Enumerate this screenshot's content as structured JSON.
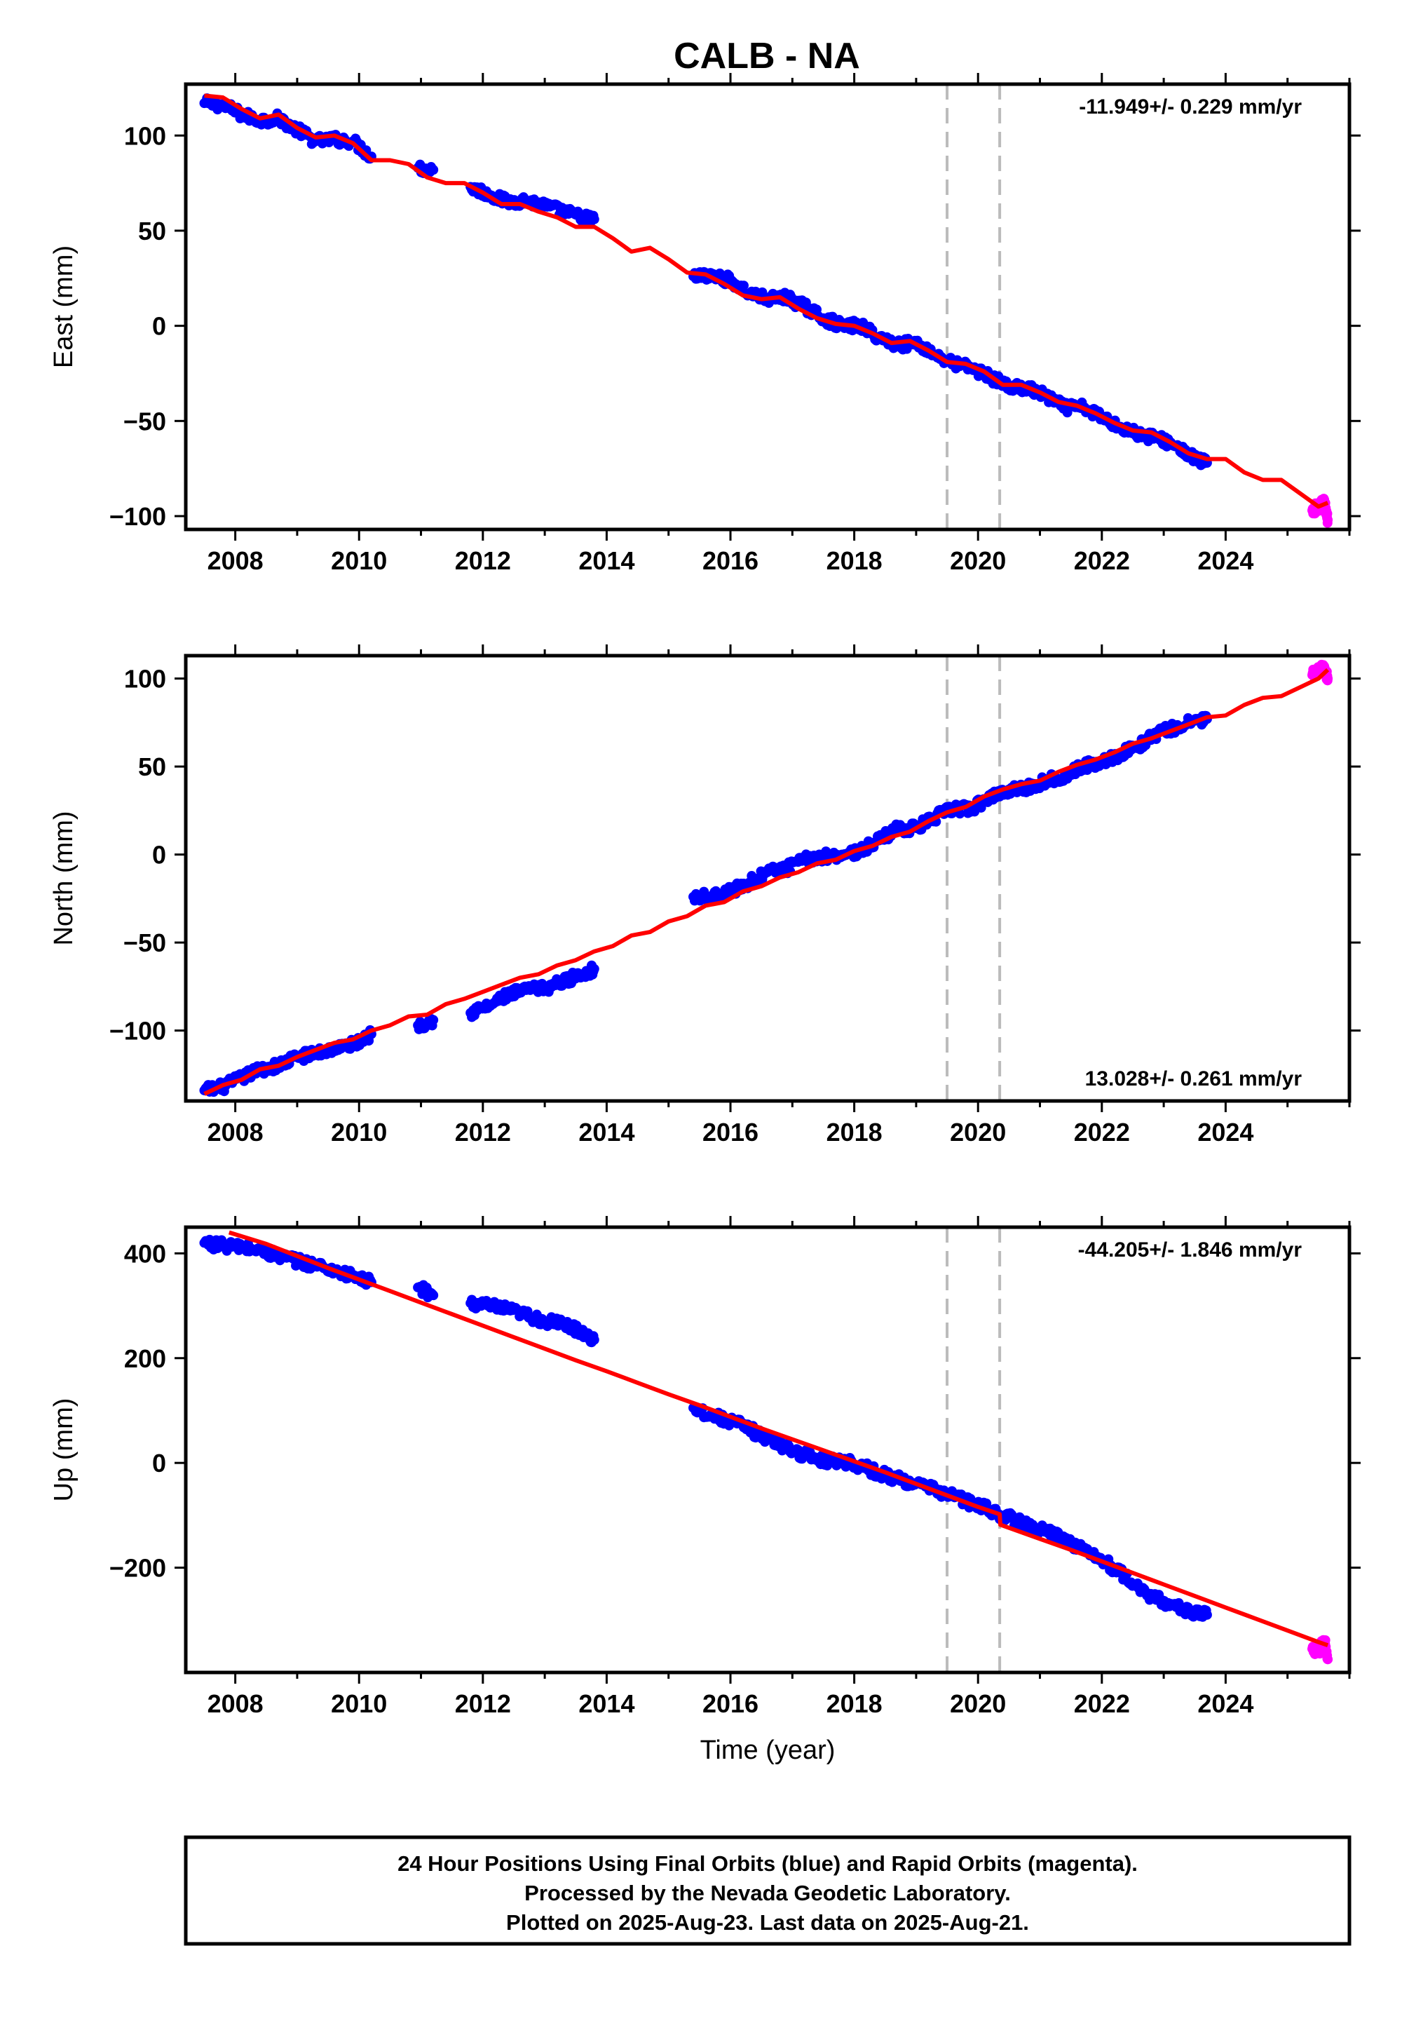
{
  "title": "CALB - NA",
  "colors": {
    "final_orbits": "#0000ff",
    "rapid_orbits": "#ff00ff",
    "model": "#ff0000",
    "event_lines": "#bbbbbb"
  },
  "notes": [
    "24 Hour Positions Using Final Orbits (blue) and Rapid Orbits (magenta).",
    "Processed by the Nevada Geodetic Laboratory.",
    "Plotted on 2025-Aug-23. Last data on 2025-Aug-21."
  ],
  "chart_data": [
    {
      "type": "scatter",
      "ylabel": "East (mm)",
      "xlabel": "",
      "rate_label": "-11.949+/- 0.229 mm/yr",
      "rate_position": "top-right",
      "xlim": [
        2007.2,
        2026.0
      ],
      "ylim": [
        -107,
        127
      ],
      "xticks": [
        2008,
        2010,
        2012,
        2014,
        2016,
        2018,
        2020,
        2022,
        2024
      ],
      "xtick_labels": [
        "2008",
        "2010",
        "2012",
        "2014",
        "2016",
        "2018",
        "2020",
        "2022",
        "2024"
      ],
      "yticks": [
        -100,
        -50,
        0,
        50,
        100
      ],
      "ytick_labels": [
        "−100",
        "−50",
        "0",
        "50",
        "100"
      ],
      "event_lines": [
        2019.5,
        2020.35
      ],
      "series": [
        {
          "role": "final_orbits",
          "kind": "points",
          "segments": [
            {
              "x": [
                2007.5,
                2007.8,
                2008.1,
                2008.4,
                2008.7,
                2009.0,
                2009.3,
                2009.6,
                2009.9,
                2010.2
              ],
              "y": [
                117,
                116,
                111,
                108,
                109,
                103,
                97,
                98,
                97,
                89
              ]
            },
            {
              "x": [
                2010.95,
                2011.2
              ],
              "y": [
                83,
                82
              ]
            },
            {
              "x": [
                2011.8,
                2012.1,
                2012.4,
                2012.7,
                2013.0,
                2013.3,
                2013.6,
                2013.8
              ],
              "y": [
                73,
                69,
                65,
                66,
                63,
                60,
                57,
                56
              ]
            },
            {
              "x": [
                2015.4,
                2015.7,
                2016.0,
                2016.3,
                2016.6,
                2016.9,
                2017.2,
                2017.5,
                2017.8,
                2018.1,
                2018.4,
                2018.7,
                2019.0,
                2019.3,
                2019.6,
                2019.9,
                2020.2,
                2020.5,
                2020.8,
                2021.1,
                2021.4,
                2021.7,
                2022.0,
                2022.3,
                2022.6,
                2022.9,
                2023.2,
                2023.5,
                2023.7
              ],
              "y": [
                26,
                26,
                24,
                17,
                14,
                15,
                10,
                4,
                0,
                0,
                -6,
                -10,
                -9,
                -15,
                -20,
                -22,
                -27,
                -32,
                -33,
                -37,
                -43,
                -43,
                -48,
                -53,
                -57,
                -59,
                -63,
                -70,
                -72
              ]
            }
          ]
        },
        {
          "role": "rapid_orbits",
          "kind": "points",
          "segments": [
            {
              "x": [
                2025.4,
                2025.5,
                2025.6,
                2025.65
              ],
              "y": [
                -97,
                -95,
                -93,
                -102
              ]
            }
          ]
        },
        {
          "role": "model",
          "kind": "line",
          "x": [
            2007.5,
            2007.8,
            2008.1,
            2008.4,
            2008.7,
            2009.0,
            2009.3,
            2009.6,
            2009.9,
            2010.2,
            2010.5,
            2010.8,
            2011.1,
            2011.4,
            2011.7,
            2012.0,
            2012.3,
            2012.6,
            2012.9,
            2013.2,
            2013.5,
            2013.8,
            2014.1,
            2014.4,
            2014.7,
            2015.0,
            2015.3,
            2015.6,
            2015.9,
            2016.2,
            2016.5,
            2016.8,
            2017.1,
            2017.4,
            2017.7,
            2018.0,
            2018.3,
            2018.6,
            2018.9,
            2019.2,
            2019.5,
            2019.8,
            2020.1,
            2020.4,
            2020.7,
            2021.0,
            2021.3,
            2021.6,
            2021.9,
            2022.2,
            2022.5,
            2022.8,
            2023.1,
            2023.4,
            2023.7,
            2024.0,
            2024.3,
            2024.6,
            2024.9,
            2025.2,
            2025.5,
            2025.65
          ],
          "y": [
            121,
            120,
            114,
            109,
            111,
            104,
            99,
            100,
            96,
            87,
            87,
            85,
            78,
            75,
            75,
            70,
            64,
            64,
            60,
            57,
            52,
            52,
            46,
            39,
            41,
            35,
            28,
            27,
            22,
            16,
            14,
            15,
            9,
            4,
            1,
            0,
            -4,
            -9,
            -8,
            -13,
            -19,
            -20,
            -24,
            -31,
            -31,
            -35,
            -40,
            -42,
            -46,
            -51,
            -55,
            -56,
            -61,
            -67,
            -70,
            -70,
            -77,
            -81,
            -81,
            -88,
            -95,
            -93
          ]
        }
      ]
    },
    {
      "type": "scatter",
      "ylabel": "North (mm)",
      "xlabel": "",
      "rate_label": "13.028+/- 0.261 mm/yr",
      "rate_position": "bottom-right",
      "xlim": [
        2007.2,
        2026.0
      ],
      "ylim": [
        -140,
        113
      ],
      "xticks": [
        2008,
        2010,
        2012,
        2014,
        2016,
        2018,
        2020,
        2022,
        2024
      ],
      "xtick_labels": [
        "2008",
        "2010",
        "2012",
        "2014",
        "2016",
        "2018",
        "2020",
        "2022",
        "2024"
      ],
      "yticks": [
        -100,
        -50,
        0,
        50,
        100
      ],
      "ytick_labels": [
        "−100",
        "−50",
        "0",
        "50",
        "100"
      ],
      "event_lines": [
        2019.5,
        2020.35
      ],
      "series": [
        {
          "role": "final_orbits",
          "kind": "points",
          "segments": [
            {
              "x": [
                2007.5,
                2007.8,
                2008.1,
                2008.4,
                2008.7,
                2009.0,
                2009.3,
                2009.6,
                2009.9,
                2010.2
              ],
              "y": [
                -134,
                -132,
                -127,
                -122,
                -120,
                -115,
                -113,
                -110,
                -108,
                -102
              ]
            },
            {
              "x": [
                2010.95,
                2011.2
              ],
              "y": [
                -97,
                -94
              ]
            },
            {
              "x": [
                2011.8,
                2012.1,
                2012.4,
                2012.7,
                2013.0,
                2013.3,
                2013.6,
                2013.8
              ],
              "y": [
                -90,
                -86,
                -80,
                -77,
                -76,
                -72,
                -68,
                -65
              ]
            },
            {
              "x": [
                2015.4,
                2015.7,
                2016.0,
                2016.3,
                2016.6,
                2016.9,
                2017.2,
                2017.5,
                2017.8,
                2018.1,
                2018.4,
                2018.7,
                2019.0,
                2019.3,
                2019.6,
                2019.9,
                2020.2,
                2020.5,
                2020.8,
                2021.1,
                2021.4,
                2021.7,
                2022.0,
                2022.3,
                2022.6,
                2022.9,
                2023.2,
                2023.5,
                2023.7
              ],
              "y": [
                -24,
                -24,
                -21,
                -16,
                -10,
                -8,
                -3,
                -1,
                0,
                2,
                8,
                15,
                15,
                21,
                26,
                26,
                33,
                37,
                38,
                42,
                45,
                50,
                53,
                57,
                62,
                69,
                72,
                76,
                77
              ]
            }
          ]
        },
        {
          "role": "rapid_orbits",
          "kind": "points",
          "segments": [
            {
              "x": [
                2025.4,
                2025.5,
                2025.6,
                2025.65
              ],
              "y": [
                102,
                104,
                106,
                100
              ]
            }
          ]
        },
        {
          "role": "model",
          "kind": "line",
          "x": [
            2007.5,
            2007.8,
            2008.1,
            2008.4,
            2008.7,
            2009.0,
            2009.3,
            2009.6,
            2009.9,
            2010.2,
            2010.5,
            2010.8,
            2011.1,
            2011.4,
            2011.7,
            2012.0,
            2012.3,
            2012.6,
            2012.9,
            2013.2,
            2013.5,
            2013.8,
            2014.1,
            2014.4,
            2014.7,
            2015.0,
            2015.3,
            2015.6,
            2015.9,
            2016.2,
            2016.5,
            2016.8,
            2017.1,
            2017.4,
            2017.7,
            2018.0,
            2018.3,
            2018.6,
            2018.9,
            2019.2,
            2019.5,
            2019.8,
            2020.1,
            2020.4,
            2020.7,
            2021.0,
            2021.3,
            2021.6,
            2021.9,
            2022.2,
            2022.5,
            2022.8,
            2023.1,
            2023.4,
            2023.7,
            2024.0,
            2024.3,
            2024.6,
            2024.9,
            2025.2,
            2025.5,
            2025.65
          ],
          "y": [
            -136,
            -131,
            -128,
            -122,
            -120,
            -115,
            -111,
            -107,
            -105,
            -100,
            -97,
            -92,
            -91,
            -85,
            -82,
            -78,
            -74,
            -70,
            -68,
            -63,
            -60,
            -55,
            -52,
            -46,
            -44,
            -38,
            -35,
            -29,
            -27,
            -21,
            -18,
            -13,
            -10,
            -5,
            -3,
            2,
            5,
            10,
            13,
            19,
            24,
            27,
            33,
            37,
            40,
            42,
            47,
            51,
            54,
            58,
            63,
            66,
            70,
            74,
            78,
            79,
            85,
            89,
            90,
            95,
            100,
            105
          ]
        }
      ]
    },
    {
      "type": "scatter",
      "ylabel": "Up (mm)",
      "xlabel": "Time (year)",
      "rate_label": "-44.205+/- 1.846 mm/yr",
      "rate_position": "top-right",
      "xlim": [
        2007.2,
        2026.0
      ],
      "ylim": [
        -400,
        450
      ],
      "xticks": [
        2008,
        2010,
        2012,
        2014,
        2016,
        2018,
        2020,
        2022,
        2024
      ],
      "xtick_labels": [
        "2008",
        "2010",
        "2012",
        "2014",
        "2016",
        "2018",
        "2020",
        "2022",
        "2024"
      ],
      "yticks": [
        -200,
        0,
        200,
        400
      ],
      "ytick_labels": [
        "−200",
        "0",
        "200",
        "400"
      ],
      "event_lines": [
        2019.5,
        2020.35
      ],
      "series": [
        {
          "role": "final_orbits",
          "kind": "points",
          "segments": [
            {
              "x": [
                2007.5,
                2007.8,
                2008.1,
                2008.4,
                2008.7,
                2009.0,
                2009.3,
                2009.6,
                2009.9,
                2010.2
              ],
              "y": [
                420,
                415,
                412,
                405,
                395,
                385,
                378,
                368,
                355,
                345
              ]
            },
            {
              "x": [
                2010.95,
                2011.2
              ],
              "y": [
                335,
                320
              ]
            },
            {
              "x": [
                2011.8,
                2012.1,
                2012.4,
                2012.7,
                2013.0,
                2013.3,
                2013.6,
                2013.8
              ],
              "y": [
                305,
                300,
                292,
                282,
                270,
                265,
                250,
                235
              ]
            },
            {
              "x": [
                2015.4,
                2015.7,
                2016.0,
                2016.3,
                2016.6,
                2016.9,
                2017.2,
                2017.5,
                2017.8,
                2018.1,
                2018.4,
                2018.7,
                2019.0,
                2019.3,
                2019.6,
                2019.9,
                2020.2,
                2020.5,
                2020.8,
                2021.1,
                2021.4,
                2021.7,
                2022.0,
                2022.3,
                2022.6,
                2022.9,
                2023.2,
                2023.5,
                2023.7
              ],
              "y": [
                105,
                90,
                80,
                65,
                45,
                30,
                15,
                5,
                5,
                -5,
                -20,
                -30,
                -40,
                -52,
                -62,
                -78,
                -90,
                -105,
                -120,
                -130,
                -145,
                -165,
                -185,
                -210,
                -240,
                -260,
                -275,
                -285,
                -290
              ]
            }
          ]
        },
        {
          "role": "rapid_orbits",
          "kind": "points",
          "segments": [
            {
              "x": [
                2025.4,
                2025.5,
                2025.6,
                2025.65
              ],
              "y": [
                -355,
                -360,
                -340,
                -375
              ]
            }
          ]
        },
        {
          "role": "model",
          "kind": "line",
          "x": [
            2007.9,
            2008.5,
            2009.0,
            2009.5,
            2010.0,
            2010.5,
            2011.0,
            2011.5,
            2012.0,
            2012.5,
            2013.0,
            2013.5,
            2014.0,
            2014.5,
            2015.0,
            2015.5,
            2016.0,
            2016.5,
            2017.0,
            2017.5,
            2018.0,
            2018.5,
            2019.0,
            2019.5,
            2020.0,
            2020.35,
            2020.36,
            2021.0,
            2021.5,
            2022.0,
            2022.5,
            2023.0,
            2023.5,
            2024.0,
            2024.5,
            2025.0,
            2025.5,
            2025.65
          ],
          "y": [
            440,
            418,
            395,
            372,
            350,
            328,
            306,
            284,
            262,
            240,
            218,
            196,
            175,
            153,
            131,
            110,
            88,
            66,
            45,
            24,
            3,
            -18,
            -40,
            -62,
            -84,
            -98,
            -118,
            -145,
            -166,
            -188,
            -210,
            -232,
            -254,
            -276,
            -298,
            -320,
            -342,
            -348
          ]
        }
      ]
    }
  ]
}
